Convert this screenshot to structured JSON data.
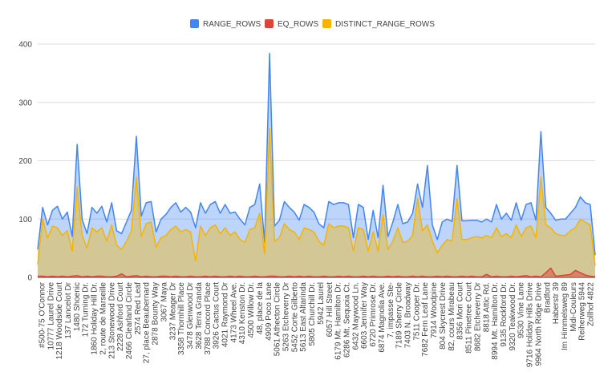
{
  "chart_data": {
    "type": "area",
    "ylim": [
      0,
      400
    ],
    "yticks": [
      0,
      100,
      200,
      300,
      400
    ],
    "grid": true,
    "legend_position": "top",
    "colors": {
      "RANGE_ROWS": "#4285f4",
      "EQ_ROWS": "#db4437",
      "DISTINCT_RANGE_ROWS": "#f4b400"
    },
    "x_tick_labels": [
      "#500-75 O'Connor",
      "10777 Laurel Drive",
      "1218 Woodside Court",
      "137 Lancelot Dr",
      "1480 Shoenic",
      "172 Turning Dr.",
      "1860 Holiday Hill Dr.",
      "2, route de Marseille",
      "213 Stonewood Drive",
      "2228 Ashford Court",
      "2466 Clearland Circle",
      "2574 Red Leaf",
      "27, place Beaubernard",
      "2878 Bounty Way",
      "3067 Maya",
      "3237 Meager Dr",
      "3358 Thornhill Place",
      "3478 Glenwood Dr",
      "3628 Terra Granda",
      "3788 Concord Place",
      "3926 Cactus Court",
      "4021 Raymond Dr",
      "4173 Wheel Ave.",
      "4310 Kenston Dr.",
      "4500 Willow Dr.",
      "48, place de la",
      "4909 Poco Lane",
      "5061 Athecton Circle",
      "5263 Etcheverry Dr",
      "5452 Corte Gilberto",
      "5613 East Altarinda",
      "5805 Churchill Dr.",
      "5942 Laurel",
      "6057 Hill Street",
      "6179 Mt. Hamilton Dr.",
      "6286 Mt. Sequoia Ct.",
      "6432 Maywood Ln.",
      "6603 Jennifer Way",
      "6720 Primrose Dr.",
      "6874 Magnolia Ave.",
      "7, impasse Ste-",
      "7189 Sherry Circle",
      "7403 N. Broadway",
      "7511 Cooper Dr.",
      "7682 Fern Leaf Lane",
      "7914 Woodpine",
      "804 Skycrest Drive",
      "82, cours Mirabeau",
      "8356 Mori Court",
      "8511 Pinetree Court",
      "8682 Etcheverry Dr",
      "8818 Attic Rd.",
      "8994 Mt. Hamilton Dr.",
      "9135 Rockford Dr.",
      "9320 Teakwood Dr.",
      "9530 Vine Lane",
      "9716 Holiday Hills Drive",
      "9964 North Ridge Drive",
      "Bradford",
      "Haberstr 39",
      "Im Himmelsweg 89",
      "Midi-Couleurs",
      "Reiherweg 5944",
      "Zollhof 4822"
    ],
    "series": [
      {
        "name": "RANGE_ROWS",
        "values": [
          48,
          120,
          90,
          115,
          122,
          100,
          112,
          70,
          228,
          100,
          75,
          120,
          110,
          122,
          95,
          128,
          80,
          75,
          95,
          115,
          242,
          105,
          128,
          130,
          78,
          100,
          108,
          120,
          128,
          112,
          120,
          112,
          85,
          128,
          110,
          125,
          130,
          110,
          125,
          110,
          112,
          100,
          90,
          120,
          125,
          160,
          60,
          384,
          88,
          98,
          130,
          120,
          112,
          98,
          125,
          120,
          112,
          92,
          85,
          130,
          125,
          128,
          128,
          125,
          68,
          125,
          120,
          65,
          115,
          68,
          158,
          70,
          95,
          125,
          92,
          95,
          110,
          160,
          120,
          192,
          90,
          65,
          95,
          100,
          96,
          192,
          97,
          97,
          98,
          98,
          95,
          100,
          95,
          125,
          100,
          110,
          98,
          128,
          98,
          125,
          128,
          98,
          250,
          120,
          110,
          98,
          100,
          100,
          110,
          120,
          138,
          128,
          125,
          38
        ]
      },
      {
        "name": "EQ_ROWS",
        "values": [
          2,
          2,
          1,
          2,
          1,
          2,
          1,
          2,
          3,
          1,
          2,
          1,
          2,
          2,
          1,
          1,
          2,
          6,
          1,
          2,
          3,
          1,
          2,
          1,
          1,
          2,
          2,
          1,
          2,
          1,
          1,
          2,
          1,
          1,
          2,
          1,
          2,
          1,
          1,
          2,
          1,
          2,
          1,
          1,
          2,
          1,
          1,
          2,
          2,
          1,
          1,
          2,
          1,
          2,
          1,
          2,
          1,
          1,
          2,
          1,
          1,
          2,
          1,
          2,
          1,
          1,
          2,
          1,
          2,
          1,
          1,
          2,
          1,
          2,
          1,
          1,
          2,
          1,
          2,
          1,
          1,
          2,
          1,
          2,
          1,
          1,
          2,
          1,
          2,
          1,
          1,
          5,
          1,
          2,
          1,
          1,
          2,
          1,
          2,
          3,
          1,
          2,
          1,
          8,
          16,
          2,
          3,
          4,
          5,
          12,
          8,
          4,
          2,
          1
        ]
      },
      {
        "name": "DISTINCT_RANGE_ROWS",
        "values": [
          22,
          100,
          68,
          88,
          85,
          72,
          80,
          45,
          155,
          72,
          50,
          85,
          78,
          85,
          62,
          90,
          55,
          48,
          62,
          80,
          172,
          70,
          92,
          95,
          52,
          68,
          72,
          82,
          88,
          78,
          82,
          78,
          28,
          88,
          72,
          85,
          90,
          75,
          85,
          72,
          78,
          65,
          60,
          82,
          85,
          110,
          40,
          255,
          62,
          68,
          92,
          82,
          78,
          65,
          85,
          82,
          78,
          62,
          55,
          92,
          85,
          88,
          88,
          85,
          45,
          85,
          82,
          45,
          78,
          45,
          108,
          48,
          62,
          85,
          60,
          62,
          72,
          135,
          80,
          90,
          62,
          42,
          55,
          65,
          62,
          135,
          65,
          65,
          68,
          70,
          68,
          72,
          68,
          85,
          70,
          75,
          68,
          90,
          70,
          85,
          88,
          68,
          172,
          90,
          85,
          75,
          72,
          72,
          80,
          85,
          100,
          95,
          90,
          20
        ]
      }
    ]
  }
}
